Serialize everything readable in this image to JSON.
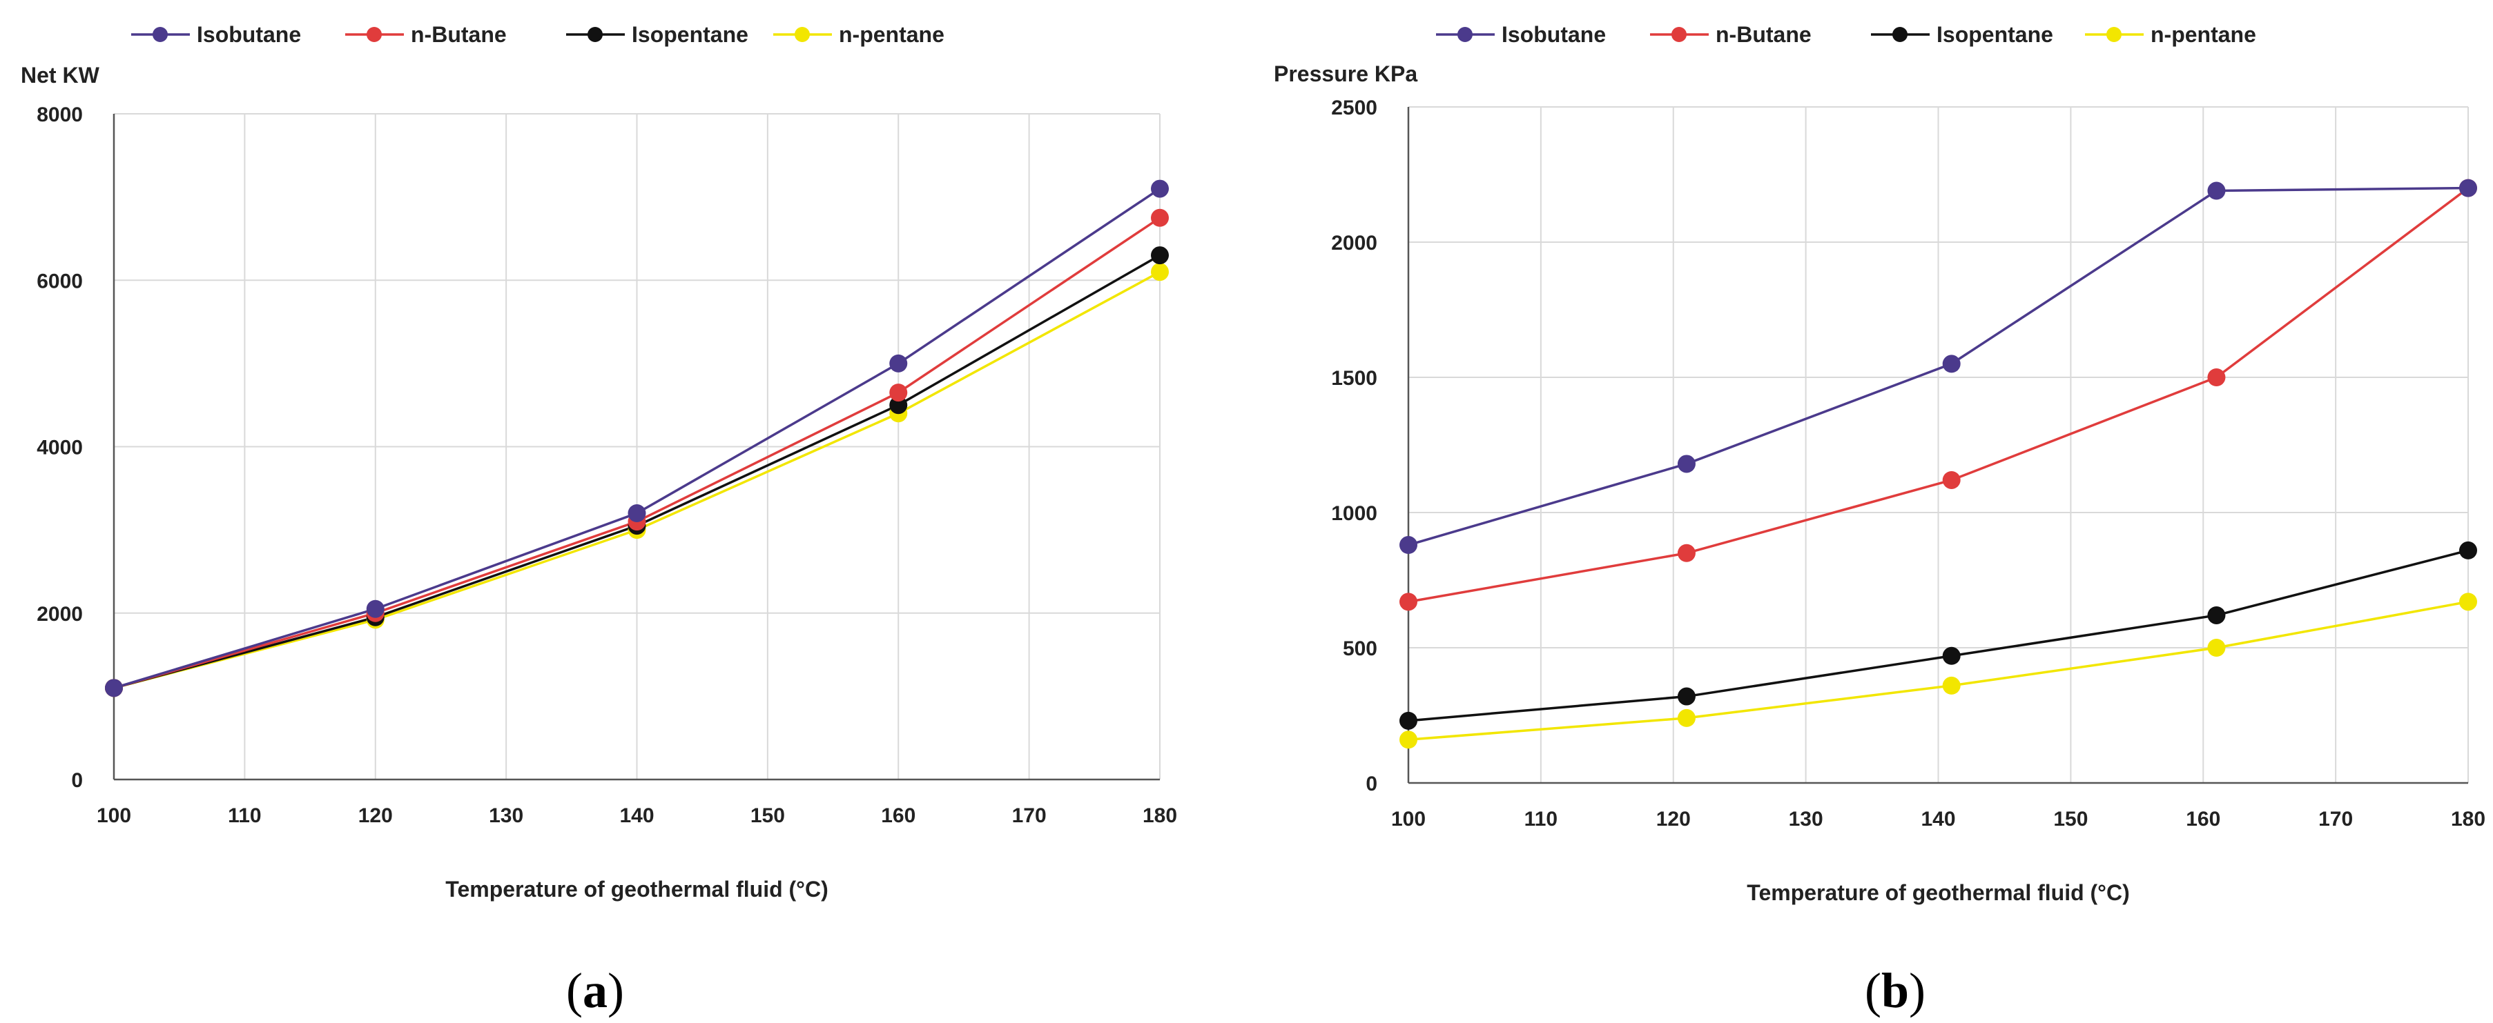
{
  "chart_data": [
    {
      "id": "a",
      "type": "line",
      "caption": "a",
      "ylabel": "Net KW",
      "xlabel": "Temperature of geothermal fluid (°C)",
      "xlim": [
        100,
        180
      ],
      "ylim": [
        0,
        8000
      ],
      "xticks": [
        100,
        110,
        120,
        130,
        140,
        150,
        160,
        170,
        180
      ],
      "yticks": [
        0,
        2000,
        4000,
        6000,
        8000
      ],
      "grid": true,
      "legend_position": "top",
      "x": [
        100,
        120,
        140,
        160,
        180
      ],
      "series": [
        {
          "name": "Isobutane",
          "color": "#4b3a8c",
          "values": [
            1100,
            2050,
            3200,
            5000,
            7100
          ]
        },
        {
          "name": "n-Butane",
          "color": "#e03c3c",
          "values": [
            1100,
            2000,
            3100,
            4650,
            6750
          ]
        },
        {
          "name": "Isopentane",
          "color": "#111111",
          "values": [
            1100,
            1950,
            3050,
            4500,
            6300
          ]
        },
        {
          "name": "n-pentane",
          "color": "#f2e600",
          "values": [
            1100,
            1920,
            3000,
            4400,
            6100
          ]
        }
      ]
    },
    {
      "id": "b",
      "type": "line",
      "caption": "b",
      "ylabel": "Pressure KPa",
      "xlabel": "Temperature of geothermal fluid (°C)",
      "xlim": [
        100,
        180
      ],
      "ylim": [
        0,
        2500
      ],
      "xticks": [
        100,
        110,
        120,
        130,
        140,
        150,
        160,
        170,
        180
      ],
      "yticks": [
        0,
        500,
        1000,
        1500,
        2000,
        2500
      ],
      "grid": true,
      "legend_position": "top",
      "x": [
        100,
        121,
        141,
        161,
        180
      ],
      "series": [
        {
          "name": "Isobutane",
          "color": "#4b3a8c",
          "values": [
            880,
            1180,
            1550,
            2190,
            2200
          ]
        },
        {
          "name": "n-Butane",
          "color": "#e03c3c",
          "values": [
            670,
            850,
            1120,
            1500,
            2200
          ]
        },
        {
          "name": "Isopentane",
          "color": "#111111",
          "values": [
            230,
            320,
            470,
            620,
            860
          ]
        },
        {
          "name": "n-pentane",
          "color": "#f2e600",
          "values": [
            160,
            240,
            360,
            500,
            670
          ]
        }
      ]
    }
  ]
}
